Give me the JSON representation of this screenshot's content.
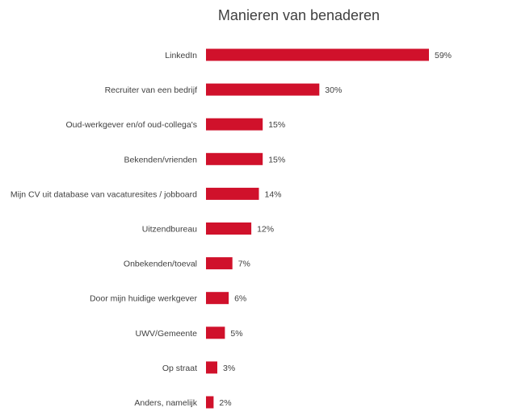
{
  "chart_data": {
    "type": "bar",
    "orientation": "horizontal",
    "title": "Manieren van benaderen",
    "categories": [
      "LinkedIn",
      "Recruiter van een bedrijf",
      "Oud-werkgever en/of oud-collega's",
      "Bekenden/vrienden",
      "Mijn CV uit database van vacaturesites / jobboard",
      "Uitzendbureau",
      "Onbekenden/toeval",
      "Door mijn huidige werkgever",
      "UWV/Gemeente",
      "Op straat",
      "Anders, namelijk"
    ],
    "values": [
      59,
      30,
      15,
      15,
      14,
      12,
      7,
      6,
      5,
      3,
      2
    ],
    "value_labels": [
      "59%",
      "30%",
      "15%",
      "15%",
      "14%",
      "12%",
      "7%",
      "6%",
      "5%",
      "3%",
      "2%"
    ],
    "unit": "%",
    "xlim": [
      0,
      59
    ],
    "grid": false,
    "legend": "none",
    "bar_color": "#d0112b"
  }
}
